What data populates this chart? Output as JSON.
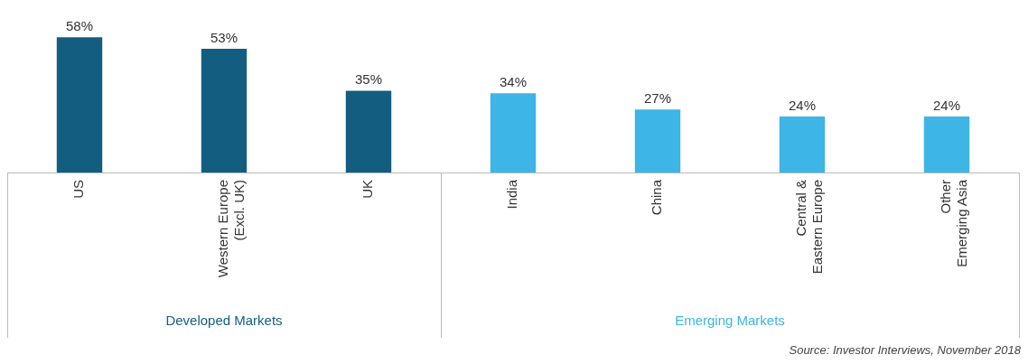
{
  "chart_data": {
    "type": "bar",
    "categories": [
      "US",
      "Western Europe\n(Excl. UK)",
      "UK",
      "India",
      "China",
      "Central &\nEastern Europe",
      "Other\nEmerging Asia"
    ],
    "series": [
      {
        "name": "Developed Markets",
        "color": "#135e80",
        "values": [
          58,
          53,
          35,
          null,
          null,
          null,
          null
        ],
        "value_labels": [
          "58%",
          "53%",
          "35%",
          null,
          null,
          null,
          null
        ]
      },
      {
        "name": "Emerging Markets",
        "color": "#3db5e6",
        "values": [
          null,
          null,
          null,
          34,
          27,
          24,
          24
        ],
        "value_labels": [
          null,
          null,
          null,
          "34%",
          "27%",
          "24%",
          "24%"
        ]
      }
    ],
    "grid": false,
    "legend": false,
    "annotations": [
      "Source: Investor Interviews, November 2018"
    ]
  }
}
